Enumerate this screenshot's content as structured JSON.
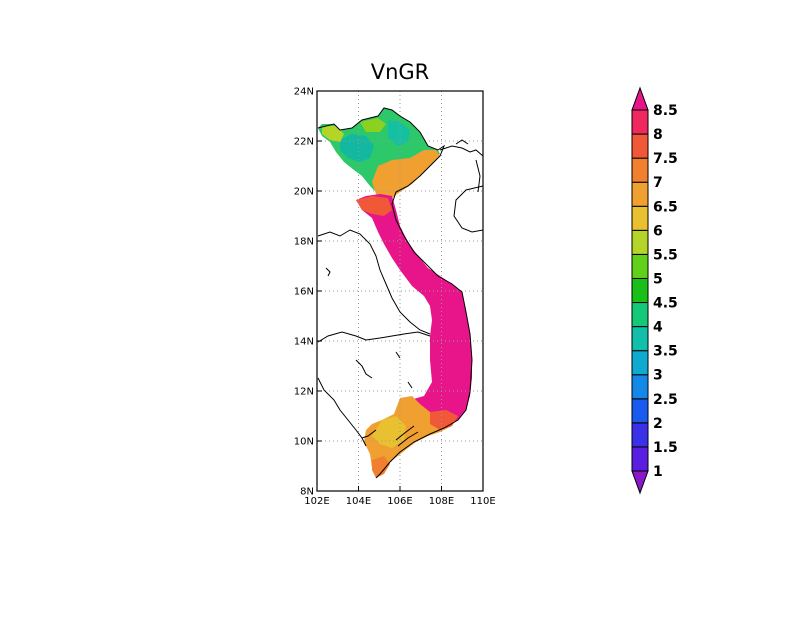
{
  "title": "VnGR",
  "map": {
    "lon_range": [
      102,
      110
    ],
    "lat_range": [
      8,
      24
    ],
    "x_ticks": [
      "102E",
      "104E",
      "106E",
      "108E",
      "110E"
    ],
    "y_ticks": [
      "8N",
      "10N",
      "12N",
      "14N",
      "16N",
      "18N",
      "20N",
      "22N",
      "24N"
    ],
    "gridlines": "dotted",
    "field": "gridded values over Vietnam, roughly 4-5 in the north, 6-7 along the coast and Mekong delta, 8.5+ across central and southern uplands"
  },
  "colorbar": {
    "labels": [
      "1",
      "1.5",
      "2",
      "2.5",
      "3",
      "3.5",
      "4",
      "4.5",
      "5",
      "5.5",
      "6",
      "6.5",
      "7",
      "7.5",
      "8",
      "8.5"
    ],
    "colors": [
      "#8a18c8",
      "#5a1ee0",
      "#3a30e8",
      "#1a5aee",
      "#1488e8",
      "#10aad0",
      "#10c0a8",
      "#14c878",
      "#18c018",
      "#60d018",
      "#b4d428",
      "#e8c030",
      "#f0a030",
      "#f08030",
      "#f05838",
      "#f02860",
      "#e8148a"
    ]
  }
}
